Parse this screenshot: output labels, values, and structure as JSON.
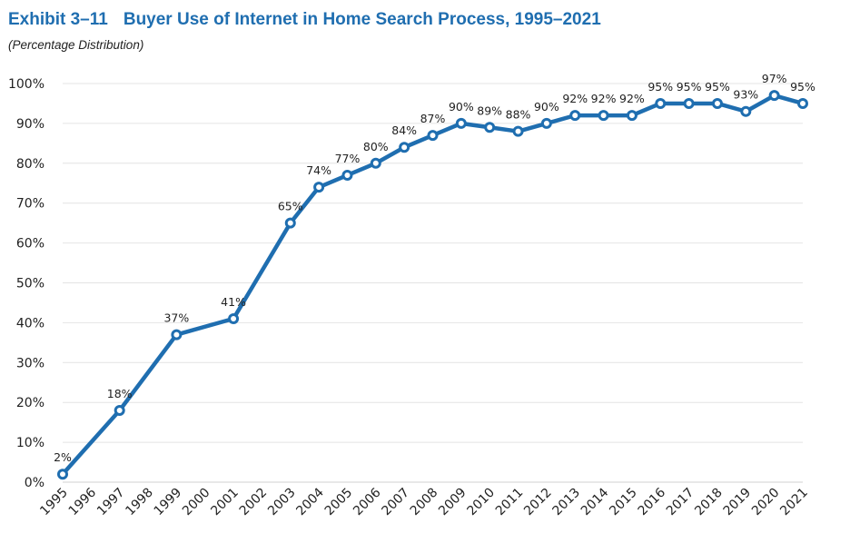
{
  "header": {
    "exhibit": "Exhibit 3–11",
    "title": "Buyer Use of Internet in Home Search Process, 1995–2021",
    "subtitle": "(Percentage Distribution)"
  },
  "colors": {
    "title": "#1f6eb0",
    "line": "#1f6eb0",
    "grid": "#e4e4e4"
  },
  "chart_data": {
    "type": "line",
    "title": "Buyer Use of Internet in Home Search Process, 1995–2021",
    "subtitle": "(Percentage Distribution)",
    "xlabel": "",
    "ylabel": "",
    "categories": [
      "1995",
      "1996",
      "1997",
      "1998",
      "1999",
      "2000",
      "2001",
      "2002",
      "2003",
      "2004",
      "2005",
      "2006",
      "2007",
      "2008",
      "2009",
      "2010",
      "2011",
      "2012",
      "2013",
      "2014",
      "2015",
      "2016",
      "2017",
      "2018",
      "2019",
      "2020",
      "2021"
    ],
    "yticks": [
      "0%",
      "10%",
      "20%",
      "30%",
      "40%",
      "50%",
      "60%",
      "70%",
      "80%",
      "90%",
      "100%"
    ],
    "ylim": [
      0,
      100
    ],
    "grid": true,
    "legend": "none",
    "series": [
      {
        "points": [
          {
            "x": "1995",
            "y": 2,
            "label": "2%"
          },
          {
            "x": "1997",
            "y": 18,
            "label": "18%"
          },
          {
            "x": "1999",
            "y": 37,
            "label": "37%"
          },
          {
            "x": "2001",
            "y": 41,
            "label": "41%"
          },
          {
            "x": "2003",
            "y": 65,
            "label": "65%"
          },
          {
            "x": "2004",
            "y": 74,
            "label": "74%"
          },
          {
            "x": "2005",
            "y": 77,
            "label": "77%"
          },
          {
            "x": "2006",
            "y": 80,
            "label": "80%"
          },
          {
            "x": "2007",
            "y": 84,
            "label": "84%"
          },
          {
            "x": "2008",
            "y": 87,
            "label": "87%"
          },
          {
            "x": "2009",
            "y": 90,
            "label": "90%"
          },
          {
            "x": "2010",
            "y": 89,
            "label": "89%"
          },
          {
            "x": "2011",
            "y": 88,
            "label": "88%"
          },
          {
            "x": "2012",
            "y": 90,
            "label": "90%"
          },
          {
            "x": "2013",
            "y": 92,
            "label": "92%"
          },
          {
            "x": "2014",
            "y": 92,
            "label": "92%"
          },
          {
            "x": "2015",
            "y": 92,
            "label": "92%"
          },
          {
            "x": "2016",
            "y": 95,
            "label": "95%"
          },
          {
            "x": "2017",
            "y": 95,
            "label": "95%"
          },
          {
            "x": "2018",
            "y": 95,
            "label": "95%"
          },
          {
            "x": "2019",
            "y": 93,
            "label": "93%"
          },
          {
            "x": "2020",
            "y": 97,
            "label": "97%"
          },
          {
            "x": "2021",
            "y": 95,
            "label": "95%"
          }
        ]
      }
    ]
  }
}
